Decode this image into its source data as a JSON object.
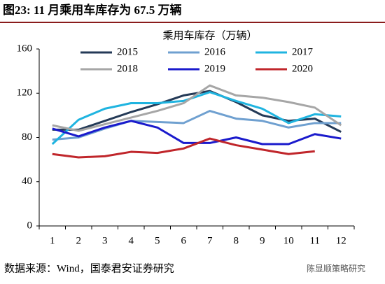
{
  "chart_data": {
    "type": "line",
    "title": "图23: 11 月乘用车库存为 67.5 万辆",
    "subtitle": "乘用车库存（万辆）",
    "source": "数据来源：Wind，国泰君安证券研究",
    "watermark": "陈显顺策略研究",
    "categories": [
      1,
      2,
      3,
      4,
      5,
      6,
      7,
      8,
      9,
      10,
      11,
      12
    ],
    "ylim": [
      0,
      160
    ],
    "yticks": [
      0,
      40,
      80,
      120,
      160
    ],
    "grid": false,
    "legend": "top",
    "series": [
      {
        "name": "2015",
        "color": "#243a57",
        "values": [
          87,
          87,
          95,
          103,
          110,
          118,
          122,
          112,
          100,
          95,
          97,
          85
        ]
      },
      {
        "name": "2016",
        "color": "#6fa0d0",
        "values": [
          78,
          80,
          88,
          95,
          94,
          93,
          104,
          97,
          95,
          89,
          93,
          93
        ]
      },
      {
        "name": "2017",
        "color": "#1fb4e0",
        "values": [
          74,
          96,
          106,
          111,
          111,
          113,
          121,
          113,
          106,
          93,
          101,
          99
        ]
      },
      {
        "name": "2018",
        "color": "#a6a6a6",
        "values": [
          91,
          86,
          92,
          98,
          104,
          111,
          127,
          118,
          116,
          112,
          107,
          91
        ]
      },
      {
        "name": "2019",
        "color": "#1a1acc",
        "values": [
          88,
          81,
          89,
          95,
          89,
          75,
          75,
          80,
          74,
          74,
          83,
          79
        ]
      },
      {
        "name": "2020",
        "color": "#c0262b",
        "values": [
          65,
          62,
          63,
          67,
          66,
          70,
          79,
          73,
          69,
          65,
          67.5,
          null
        ]
      }
    ]
  }
}
